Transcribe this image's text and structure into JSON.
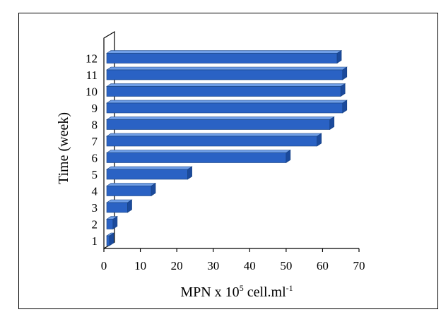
{
  "chart_data": {
    "type": "bar",
    "orientation": "horizontal",
    "style": "3d",
    "bar_color": "#2a62c4",
    "categories": [
      "1",
      "2",
      "3",
      "4",
      "5",
      "6",
      "7",
      "8",
      "9",
      "10",
      "11",
      "12"
    ],
    "values": [
      1,
      2.5,
      6.5,
      13,
      23,
      50,
      58.5,
      62,
      65.5,
      65,
      65.5,
      64
    ],
    "ylabel": "Time   (week)",
    "xlabel_prefix": "MPN  x 10",
    "xlabel_exp": "5",
    "xlabel_unit": " cell.ml",
    "xlabel_unit_exp": "-1",
    "xlim": [
      0,
      70
    ],
    "xticks": [
      "0",
      "10",
      "20",
      "30",
      "40",
      "50",
      "60",
      "70"
    ],
    "grid": false,
    "legend": "none"
  }
}
